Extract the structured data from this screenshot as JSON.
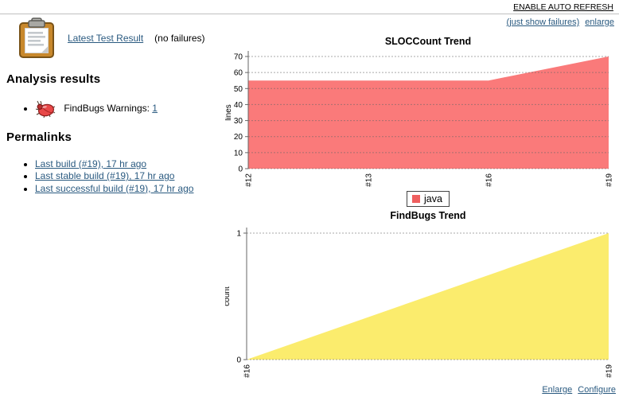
{
  "header": {
    "auto_refresh_label": "ENABLE AUTO REFRESH",
    "just_show_failures_label": "(just show failures)",
    "enlarge_label": "enlarge"
  },
  "test_result": {
    "link_label": "Latest Test Result",
    "note": "(no failures)",
    "icon": "clipboard-icon"
  },
  "analysis": {
    "heading": "Analysis results",
    "items": [
      {
        "icon": "bug-icon",
        "label": "FindBugs Warnings:",
        "count": "1"
      }
    ]
  },
  "permalinks": {
    "heading": "Permalinks",
    "items": [
      "Last build (#19), 17 hr ago",
      "Last stable build (#19), 17 hr ago",
      "Last successful build (#19), 17 hr ago"
    ]
  },
  "footer": {
    "enlarge_label": "Enlarge",
    "configure_label": "Configure"
  },
  "colors": {
    "link": "#2a5a80",
    "grid": "#666666",
    "axis": "#666666",
    "sloc_area": "#fa7a7a",
    "sloc_legend_swatch": "#ef5f5f",
    "findbugs_area": "#fbec6d"
  },
  "chart_data": [
    {
      "type": "area",
      "title": "SLOCCount Trend",
      "xlabel": "",
      "ylabel": "lines",
      "categories": [
        "#12",
        "#13",
        "#16",
        "#19"
      ],
      "series": [
        {
          "name": "java",
          "values": [
            55,
            55,
            55,
            70
          ],
          "color": "#fa7a7a"
        }
      ],
      "ylim": [
        0,
        70
      ],
      "yticks": [
        0,
        10,
        20,
        30,
        40,
        50,
        60,
        70
      ],
      "grid": true,
      "legend_position": "bottom"
    },
    {
      "type": "area",
      "title": "FindBugs Trend",
      "xlabel": "",
      "ylabel": "count",
      "categories": [
        "#16",
        "#19"
      ],
      "series": [
        {
          "name": "findbugs",
          "values": [
            0,
            1
          ],
          "color": "#fbec6d"
        }
      ],
      "ylim": [
        0,
        1
      ],
      "yticks": [
        0,
        1
      ],
      "grid": true,
      "legend_position": "none"
    }
  ]
}
